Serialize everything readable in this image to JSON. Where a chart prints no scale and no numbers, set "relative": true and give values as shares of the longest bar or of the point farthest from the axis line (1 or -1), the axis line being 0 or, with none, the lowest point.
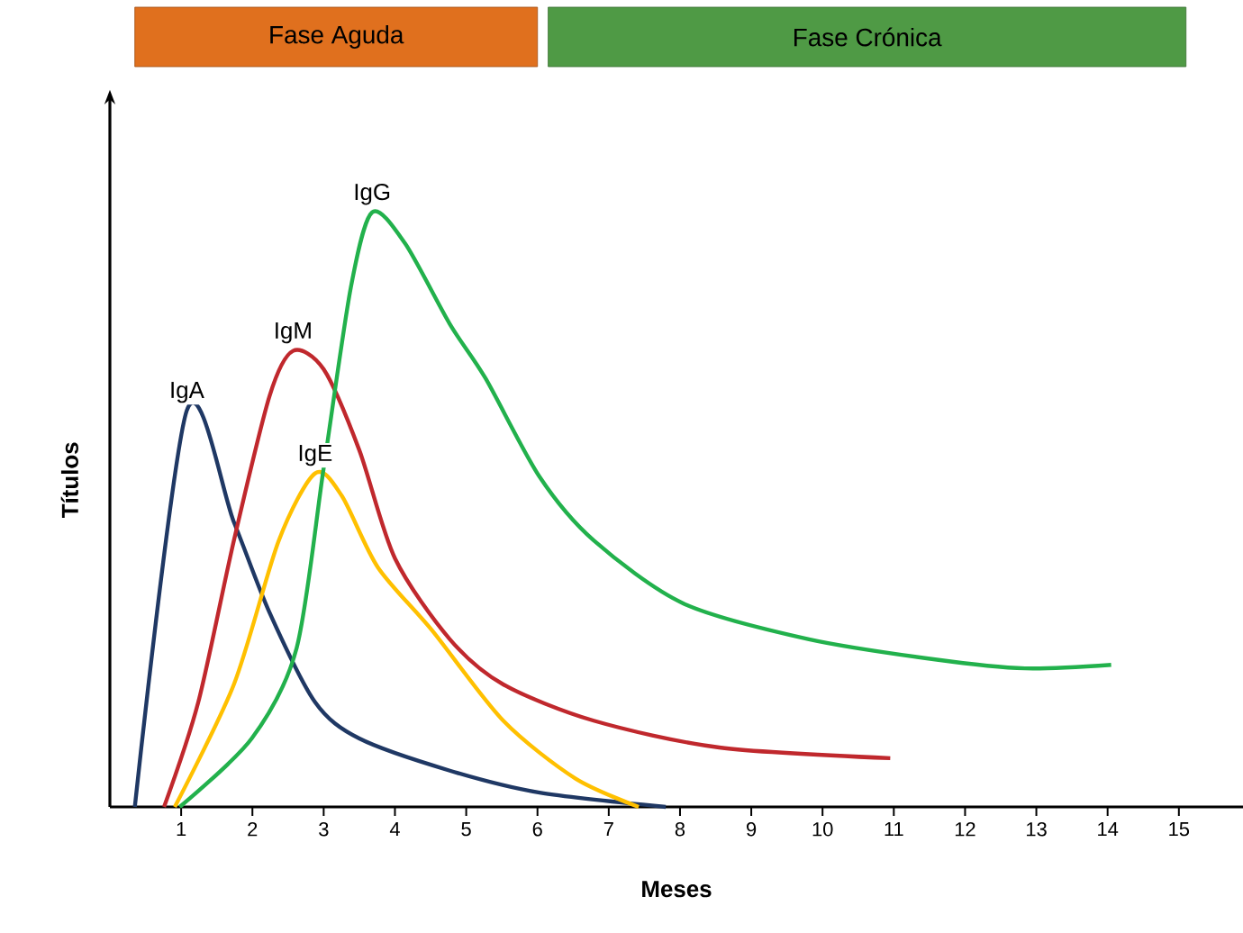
{
  "chart_data": {
    "type": "line",
    "relative": true,
    "xlabel": "Meses",
    "ylabel": "Títulos",
    "xlim": [
      0,
      15.9
    ],
    "xticks": [
      1,
      2,
      3,
      4,
      5,
      6,
      7,
      8,
      9,
      10,
      11,
      12,
      13,
      14,
      15
    ],
    "legend": false,
    "grid": false,
    "marker": "none",
    "line_style": "solid",
    "annotations": [
      "Fase Aguda",
      "Fase Crónica"
    ],
    "series": [
      {
        "name": "IgA",
        "color": "#1f3864",
        "x": [
          0.35,
          1.08,
          1.74,
          2.24,
          2.88,
          3.5,
          4.77,
          6.03,
          7.8
        ],
        "values": [
          0,
          0.667,
          0.479,
          0.327,
          0.176,
          0.115,
          0.061,
          0.024,
          0
        ]
      },
      {
        "name": "IgM",
        "color": "#c0282d",
        "x": [
          0.76,
          1.24,
          1.74,
          2.24,
          2.57,
          3.0,
          3.5,
          4.0,
          4.77,
          5.52,
          6.79,
          8.55,
          10.95
        ],
        "values": [
          0,
          0.176,
          0.448,
          0.691,
          0.767,
          0.736,
          0.6,
          0.418,
          0.282,
          0.206,
          0.145,
          0.1,
          0.082
        ]
      },
      {
        "name": "IgE",
        "color": "#ffc000",
        "x": [
          0.91,
          1.74,
          2.37,
          2.88,
          3.25,
          3.76,
          4.52,
          5.52,
          6.53,
          7.42
        ],
        "values": [
          0,
          0.206,
          0.448,
          0.561,
          0.524,
          0.403,
          0.297,
          0.145,
          0.048,
          0
        ]
      },
      {
        "name": "IgG",
        "color": "#22b14c",
        "x": [
          0.98,
          1.99,
          2.62,
          3.0,
          3.38,
          3.68,
          4.14,
          4.77,
          5.27,
          6.03,
          6.79,
          8.05,
          9.81,
          11.58,
          12.84,
          14.05
        ],
        "values": [
          0,
          0.115,
          0.267,
          0.57,
          0.873,
          1,
          0.948,
          0.812,
          0.721,
          0.555,
          0.448,
          0.342,
          0.282,
          0.248,
          0.233,
          0.239
        ]
      }
    ]
  }
}
